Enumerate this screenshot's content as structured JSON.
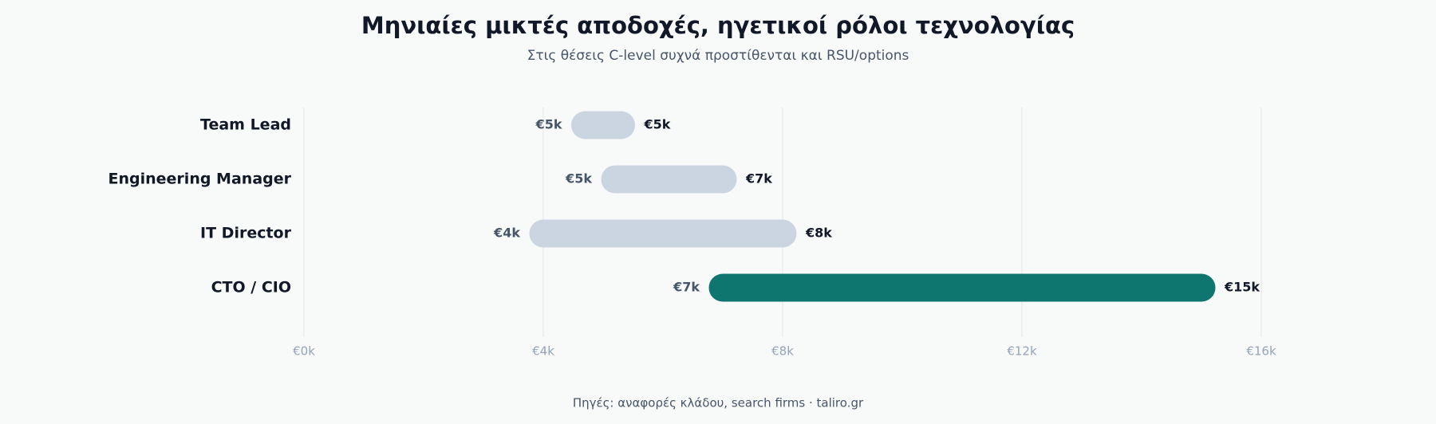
{
  "chart_data": {
    "type": "range",
    "title": "Μηνιαίες μικτές αποδοχές, ηγετικοί ρόλοι τεχνολογίας",
    "subtitle": "Στις θέσεις C-level συχνά προστίθενται και RSU/options",
    "source": "Πηγές: αναφορές κλάδου, search firms · taliro.gr",
    "categories": [
      "Team Lead",
      "Engineering Manager",
      "IT Director",
      "CTO / CIO"
    ],
    "low": [
      4700,
      5200,
      4000,
      7000
    ],
    "high": [
      5300,
      7000,
      8000,
      15000
    ],
    "low_labels": [
      "€5k",
      "€5k",
      "€4k",
      "€7k"
    ],
    "high_labels": [
      "€5k",
      "€7k",
      "€8k",
      "€15k"
    ],
    "colors": [
      "#cbd5e1",
      "#cbd5e1",
      "#cbd5e1",
      "#0e766e"
    ],
    "xlim": [
      0,
      16000
    ],
    "xticks": [
      {
        "value": 0,
        "label": "€0k"
      },
      {
        "value": 4000,
        "label": "€4k"
      },
      {
        "value": 8000,
        "label": "€8k"
      },
      {
        "value": 12000,
        "label": "€12k"
      },
      {
        "value": 16000,
        "label": "€16k"
      }
    ],
    "grid": true
  }
}
